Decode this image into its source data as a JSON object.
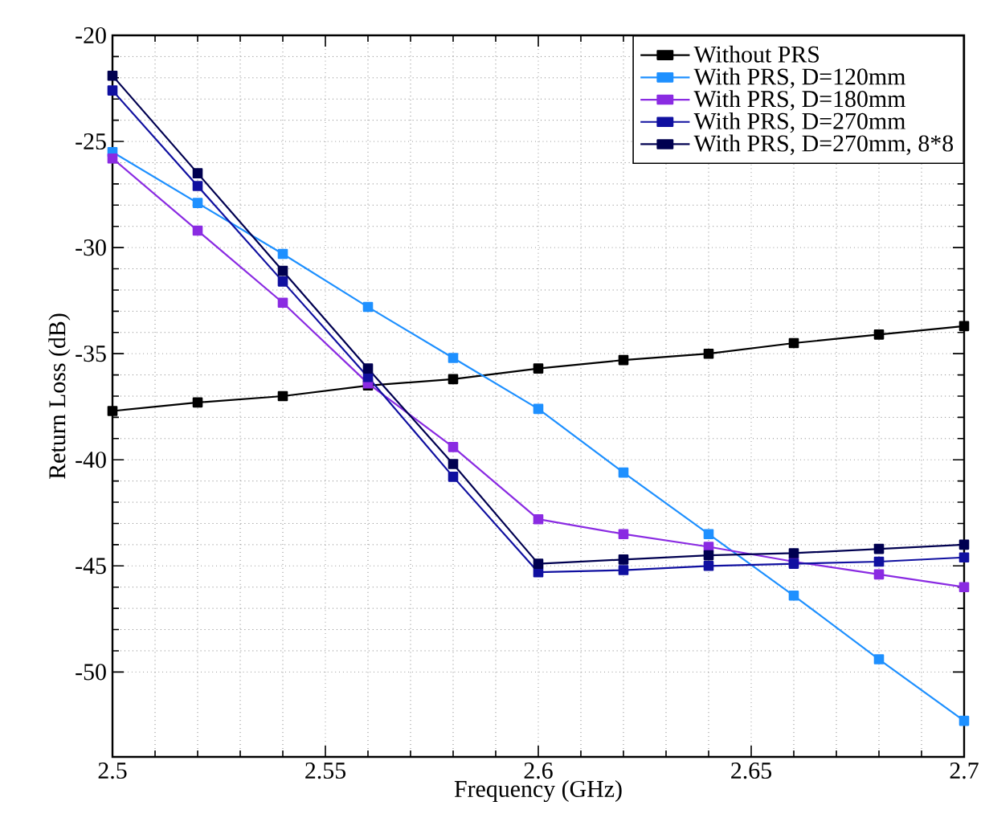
{
  "chart_data": {
    "type": "line",
    "xlabel": "Frequency (GHz)",
    "ylabel": "Return Loss (dB)",
    "x": [
      2.5,
      2.52,
      2.54,
      2.56,
      2.58,
      2.6,
      2.62,
      2.64,
      2.66,
      2.68,
      2.7
    ],
    "series": [
      {
        "name": "Without PRS",
        "color": "#000000",
        "values": [
          -37.7,
          -37.3,
          -37.0,
          -36.5,
          -36.2,
          -35.7,
          -35.3,
          -35.0,
          -34.5,
          -34.1,
          -33.7
        ]
      },
      {
        "name": "With PRS, D=120mm",
        "color": "#1e90ff",
        "values": [
          -25.5,
          -27.9,
          -30.3,
          -32.8,
          -35.2,
          -37.6,
          -40.6,
          -43.5,
          -46.4,
          -49.4,
          -52.3
        ]
      },
      {
        "name": "With PRS, D=180mm",
        "color": "#8a2be2",
        "values": [
          -25.8,
          -29.2,
          -32.6,
          -36.4,
          -39.4,
          -42.8,
          -43.5,
          -44.1,
          -44.8,
          -45.4,
          -46.0
        ]
      },
      {
        "name": "With PRS, D=270mm",
        "color": "#1010a0",
        "values": [
          -22.6,
          -27.1,
          -31.6,
          -36.1,
          -40.8,
          -45.3,
          -45.2,
          -45.0,
          -44.9,
          -44.8,
          -44.6
        ]
      },
      {
        "name": "With PRS, D=270mm, 8*8",
        "color": "#000050",
        "values": [
          -21.9,
          -26.5,
          -31.1,
          -35.7,
          -40.2,
          -44.9,
          -44.7,
          -44.5,
          -44.4,
          -44.2,
          -44.0
        ]
      }
    ],
    "xlim": [
      2.5,
      2.7
    ],
    "ylim": [
      -54,
      -20
    ],
    "xticks": [
      2.5,
      2.55,
      2.6,
      2.65,
      2.7
    ],
    "yticks": [
      -50,
      -45,
      -40,
      -35,
      -30,
      -25,
      -20
    ],
    "grid": true,
    "legend": "top right",
    "marker": "square",
    "line_style": "solid"
  }
}
